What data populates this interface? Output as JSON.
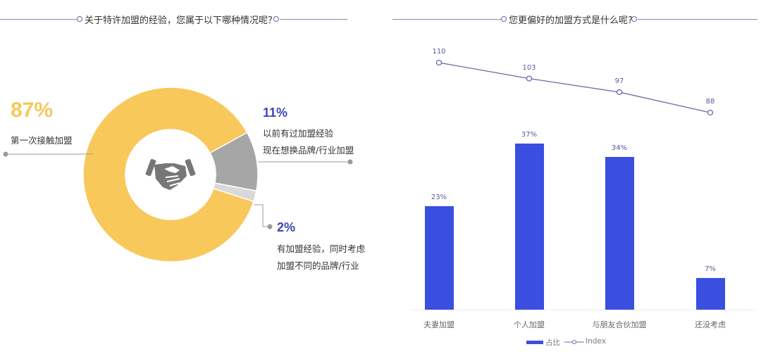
{
  "left_panel": {
    "title": "关于特许加盟的经验，您属于以下哪种情况呢？",
    "center_icon": "handshake-icon",
    "segments": [
      {
        "label_pct": "87%",
        "lines": [
          "第一次接触加盟"
        ],
        "color": "#f9c85b"
      },
      {
        "label_pct": "11%",
        "lines": [
          "以前有过加盟经验",
          "现在想换品牌/行业加盟"
        ],
        "color": "#a6a6a6"
      },
      {
        "label_pct": "2%",
        "lines": [
          "有加盟经验，同时考虑",
          "加盟不同的品牌/行业"
        ],
        "color": "#d9d9d9"
      }
    ]
  },
  "right_panel": {
    "title": "您更偏好的加盟方式是什么呢?"
  },
  "chart_data": [
    {
      "type": "pie",
      "title": "关于特许加盟的经验，您属于以下哪种情况呢？",
      "categories": [
        "第一次接触加盟",
        "以前有过加盟经验 现在想换品牌/行业加盟",
        "有加盟经验，同时考虑 加盟不同的品牌/行业"
      ],
      "values": [
        87,
        11,
        2
      ],
      "unit": "%",
      "donut": true,
      "colors": [
        "#f9c85b",
        "#a6a6a6",
        "#d9d9d9"
      ]
    },
    {
      "type": "bar",
      "title": "您更偏好的加盟方式是什么呢?",
      "categories": [
        "夫妻加盟",
        "个人加盟",
        "与朋友合伙加盟",
        "还没考虑"
      ],
      "series": [
        {
          "name": "占比",
          "type": "bar",
          "values": [
            23,
            37,
            34,
            7
          ],
          "labels": [
            "23%",
            "37%",
            "34%",
            "7%"
          ],
          "color": "#3a4fe0"
        },
        {
          "name": "Index",
          "type": "line",
          "values": [
            110,
            103,
            97,
            88
          ],
          "labels": [
            "110",
            "103",
            "97",
            "88"
          ],
          "color": "#6b67a8"
        }
      ],
      "xlabel": "",
      "ylabel": "",
      "grid": false,
      "legend_position": "bottom",
      "legend": [
        "占比",
        "Index"
      ]
    }
  ]
}
